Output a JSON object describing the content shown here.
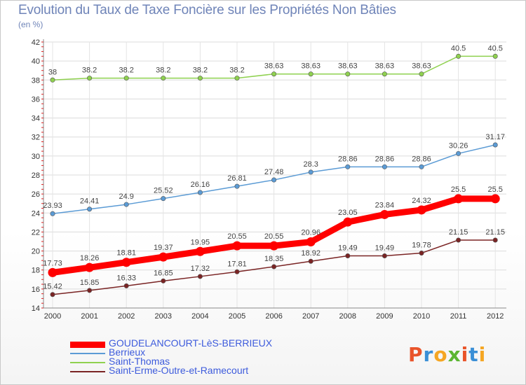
{
  "header": {
    "title": "Evolution du Taux de Taxe Foncière sur les Propriétés Non Bâties",
    "unit": "(en %)"
  },
  "logo": {
    "text": "Proxiti",
    "colors": [
      "#e9542a",
      "#3a8fd6",
      "#f5a623",
      "#5bb531",
      "#e9542a",
      "#3a8fd6",
      "#f5a623"
    ]
  },
  "chart_data": {
    "type": "line",
    "title": "Evolution du Taux de Taxe Foncière sur les Propriétés Non Bâties",
    "ylabel": "(en %)",
    "xlabel": "",
    "x": [
      "2000",
      "2001",
      "2002",
      "2003",
      "2004",
      "2005",
      "2006",
      "2007",
      "2008",
      "2009",
      "2010",
      "2011",
      "2012"
    ],
    "ylim": [
      14,
      42
    ],
    "yticks": [
      14,
      16,
      18,
      20,
      22,
      24,
      26,
      28,
      30,
      32,
      34,
      36,
      38,
      40,
      42
    ],
    "grid": true,
    "legend_position": "bottom-left",
    "series": [
      {
        "name": "GOUDELANCOURT-LèS-BERRIEUX",
        "color": "#ff0000",
        "width": 9,
        "values": [
          17.73,
          18.26,
          18.81,
          19.37,
          19.95,
          20.55,
          20.55,
          20.96,
          23.05,
          23.84,
          24.32,
          25.5,
          25.5
        ],
        "labels": [
          "17.73",
          "18.26",
          "18.81",
          "19.37",
          "19.95",
          "20.55",
          "20.55",
          "20.96",
          "23.05",
          "23.84",
          "24.32",
          "25.5",
          "25.5"
        ]
      },
      {
        "name": "Berrieux",
        "color": "#5b9bd5",
        "width": 1.5,
        "values": [
          23.93,
          24.41,
          24.9,
          25.52,
          26.16,
          26.81,
          27.48,
          28.3,
          28.86,
          28.86,
          28.86,
          30.26,
          31.17
        ],
        "labels": [
          "23.93",
          "24.41",
          "24.9",
          "25.52",
          "26.16",
          "26.81",
          "27.48",
          "28.3",
          "28.86",
          "28.86",
          "28.86",
          "30.26",
          "31.17"
        ]
      },
      {
        "name": "Saint-Thomas",
        "color": "#8fd14f",
        "width": 1.5,
        "values": [
          38,
          38.2,
          38.2,
          38.2,
          38.2,
          38.2,
          38.63,
          38.63,
          38.63,
          38.63,
          38.63,
          40.5,
          40.5
        ],
        "labels": [
          "38",
          "38.2",
          "38.2",
          "38.2",
          "38.2",
          "38.2",
          "38.63",
          "38.63",
          "38.63",
          "38.63",
          "38.63",
          "40.5",
          "40.5"
        ]
      },
      {
        "name": "Saint-Erme-Outre-et-Ramecourt",
        "color": "#7a2424",
        "width": 1.5,
        "values": [
          15.42,
          15.85,
          16.33,
          16.85,
          17.32,
          17.81,
          18.35,
          18.92,
          19.49,
          19.49,
          19.78,
          21.15,
          21.15
        ],
        "labels": [
          "15.42",
          "15.85",
          "16.33",
          "16.85",
          "17.32",
          "17.81",
          "18.35",
          "18.92",
          "19.49",
          "19.49",
          "19.78",
          "21.15",
          "21.15"
        ]
      }
    ]
  }
}
